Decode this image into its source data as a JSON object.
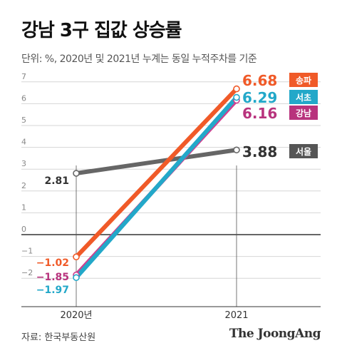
{
  "header": {
    "title": "강남 3구 집값 상승률",
    "subtitle": "단위: %, 2020년 및 2021년 누계는 동일 누적주차를 기준"
  },
  "footer": {
    "source": "자료: 한국부동산원",
    "brand": "The JoongAng"
  },
  "chart_data": {
    "type": "line",
    "x": [
      "2020년",
      "2021"
    ],
    "yticks": [
      7,
      6,
      5,
      4,
      3,
      2,
      1,
      0,
      -1,
      -2
    ],
    "ylim": [
      -3,
      7.4
    ],
    "grid": true,
    "series": [
      {
        "name": "송파",
        "values": [
          -1.02,
          6.68
        ],
        "start_label": "−1.02",
        "end_label": "6.68",
        "color": "#f05a28",
        "label_color": "#f05a28",
        "badge_color": "#f05a28"
      },
      {
        "name": "서초",
        "values": [
          -1.97,
          6.29
        ],
        "start_label": "−1.97",
        "end_label": "6.29",
        "color": "#23a8c9",
        "label_color": "#23a8c9",
        "badge_color": "#23a8c9"
      },
      {
        "name": "강남",
        "values": [
          -1.85,
          6.16
        ],
        "start_label": "−1.85",
        "end_label": "6.16",
        "color": "#cf3f8f",
        "label_color": "#b8337d",
        "badge_color": "#b8337d"
      },
      {
        "name": "서울",
        "values": [
          2.81,
          3.88
        ],
        "start_label": "2.81",
        "end_label": "3.88",
        "color": "#666666",
        "label_color": "#333333",
        "badge_color": "#555555"
      }
    ]
  }
}
